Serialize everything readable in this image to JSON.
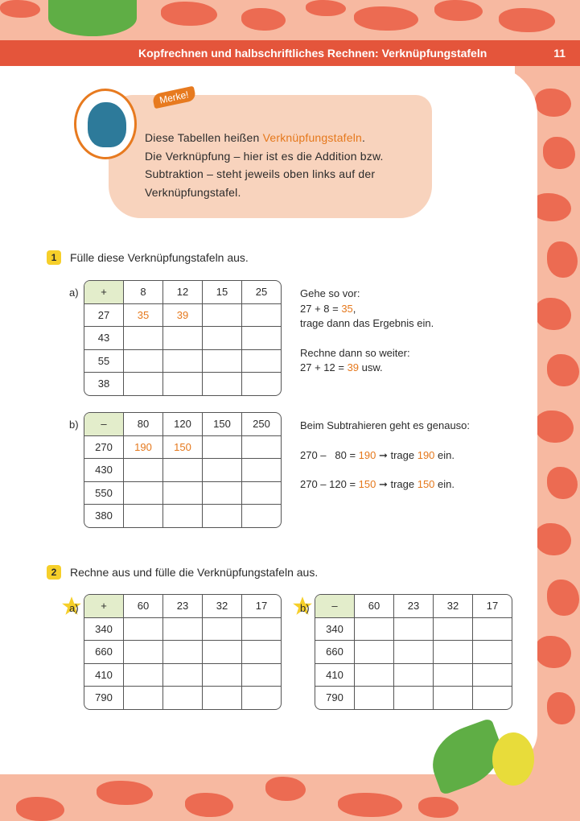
{
  "header": {
    "title": "Kopfrechnen und halbschriftliches Rechnen: Verknüpfungstafeln",
    "page_number": "11"
  },
  "merke": {
    "tag": "Merke!",
    "line1_pre": "Diese Tabellen heißen ",
    "line1_highlight": "Verknüpfungstafeln",
    "line1_post": ".",
    "line2": "Die Verknüpfung – hier ist es die Addition bzw.",
    "line3": "Subtraktion – steht jeweils oben links auf der",
    "line4": "Verknüpfungstafel."
  },
  "task1": {
    "number": "1",
    "instruction": "Fülle diese Verknüpfungstafeln aus.",
    "a": {
      "label": "a)",
      "operator": "+",
      "columns": [
        "8",
        "12",
        "15",
        "25"
      ],
      "rows": [
        {
          "head": "27",
          "cells": [
            "35",
            "39",
            "",
            ""
          ]
        },
        {
          "head": "43",
          "cells": [
            "",
            "",
            "",
            ""
          ]
        },
        {
          "head": "55",
          "cells": [
            "",
            "",
            "",
            ""
          ]
        },
        {
          "head": "38",
          "cells": [
            "",
            "",
            "",
            ""
          ]
        }
      ],
      "hint": {
        "l1": "Gehe so vor:",
        "l2_pre": "27 + 8 = ",
        "l2_val": "35",
        "l2_post": ",",
        "l3": "trage dann das Ergebnis ein.",
        "l4": "Rechne dann so weiter:",
        "l5_pre": "27 + 12 = ",
        "l5_val": "39",
        "l5_post": " usw."
      }
    },
    "b": {
      "label": "b)",
      "operator": "–",
      "columns": [
        "80",
        "120",
        "150",
        "250"
      ],
      "rows": [
        {
          "head": "270",
          "cells": [
            "190",
            "150",
            "",
            ""
          ]
        },
        {
          "head": "430",
          "cells": [
            "",
            "",
            "",
            ""
          ]
        },
        {
          "head": "550",
          "cells": [
            "",
            "",
            "",
            ""
          ]
        },
        {
          "head": "380",
          "cells": [
            "",
            "",
            "",
            ""
          ]
        }
      ],
      "hint": {
        "l1": "Beim Subtrahieren geht es genauso:",
        "l2_pre": "270 –   80 = ",
        "l2_val": "190",
        "l2_mid": " ➞ trage ",
        "l2_val2": "190",
        "l2_post": " ein.",
        "l3_pre": "270 – 120 = ",
        "l3_val": "150",
        "l3_mid": " ➞ trage ",
        "l3_val2": "150",
        "l3_post": " ein."
      }
    }
  },
  "task2": {
    "number": "2",
    "instruction": "Rechne aus und fülle die Verknüpfungstafeln aus.",
    "a": {
      "label": "a)",
      "operator": "+",
      "columns": [
        "60",
        "23",
        "32",
        "17"
      ],
      "rows": [
        "340",
        "660",
        "410",
        "790"
      ]
    },
    "b": {
      "label": "b)",
      "operator": "–",
      "columns": [
        "60",
        "23",
        "32",
        "17"
      ],
      "rows": [
        "340",
        "660",
        "410",
        "790"
      ]
    }
  },
  "colors": {
    "accent": "#e5781c",
    "header": "#e4553b",
    "operator_cell": "#e3edcb",
    "task_badge": "#f6cf2a"
  }
}
